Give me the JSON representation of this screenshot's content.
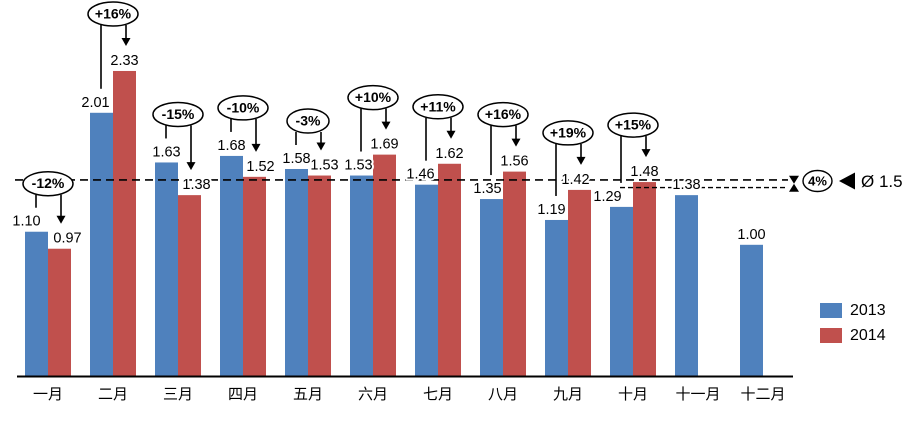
{
  "chart_data": {
    "type": "bar",
    "title": "",
    "xlabel": "",
    "ylabel": "",
    "categories": [
      "一月",
      "二月",
      "三月",
      "四月",
      "五月",
      "六月",
      "七月",
      "八月",
      "九月",
      "十月",
      "十一月",
      "十二月"
    ],
    "series": [
      {
        "name": "2013",
        "color": "#4F81BD",
        "values": [
          1.1,
          2.01,
          1.63,
          1.68,
          1.58,
          1.53,
          1.46,
          1.35,
          1.19,
          1.29,
          1.38,
          1.0
        ]
      },
      {
        "name": "2014",
        "color": "#C0504D",
        "values": [
          0.97,
          2.33,
          1.38,
          1.52,
          1.53,
          1.69,
          1.62,
          1.56,
          1.42,
          1.48,
          null,
          null
        ]
      }
    ],
    "pct_change_labels": [
      "-12%",
      "+16%",
      "-15%",
      "-10%",
      "-3%",
      "+10%",
      "+11%",
      "+16%",
      "+19%",
      "+15%",
      null,
      null
    ],
    "reference_line": {
      "value": 1.5,
      "label": "Ø 1.5",
      "gap_label": "4%",
      "secondary_value": 1.44
    },
    "ylim": [
      0,
      2.5
    ],
    "grid": false,
    "legend_position": "bottom-right",
    "value_label_decimals": 2
  }
}
